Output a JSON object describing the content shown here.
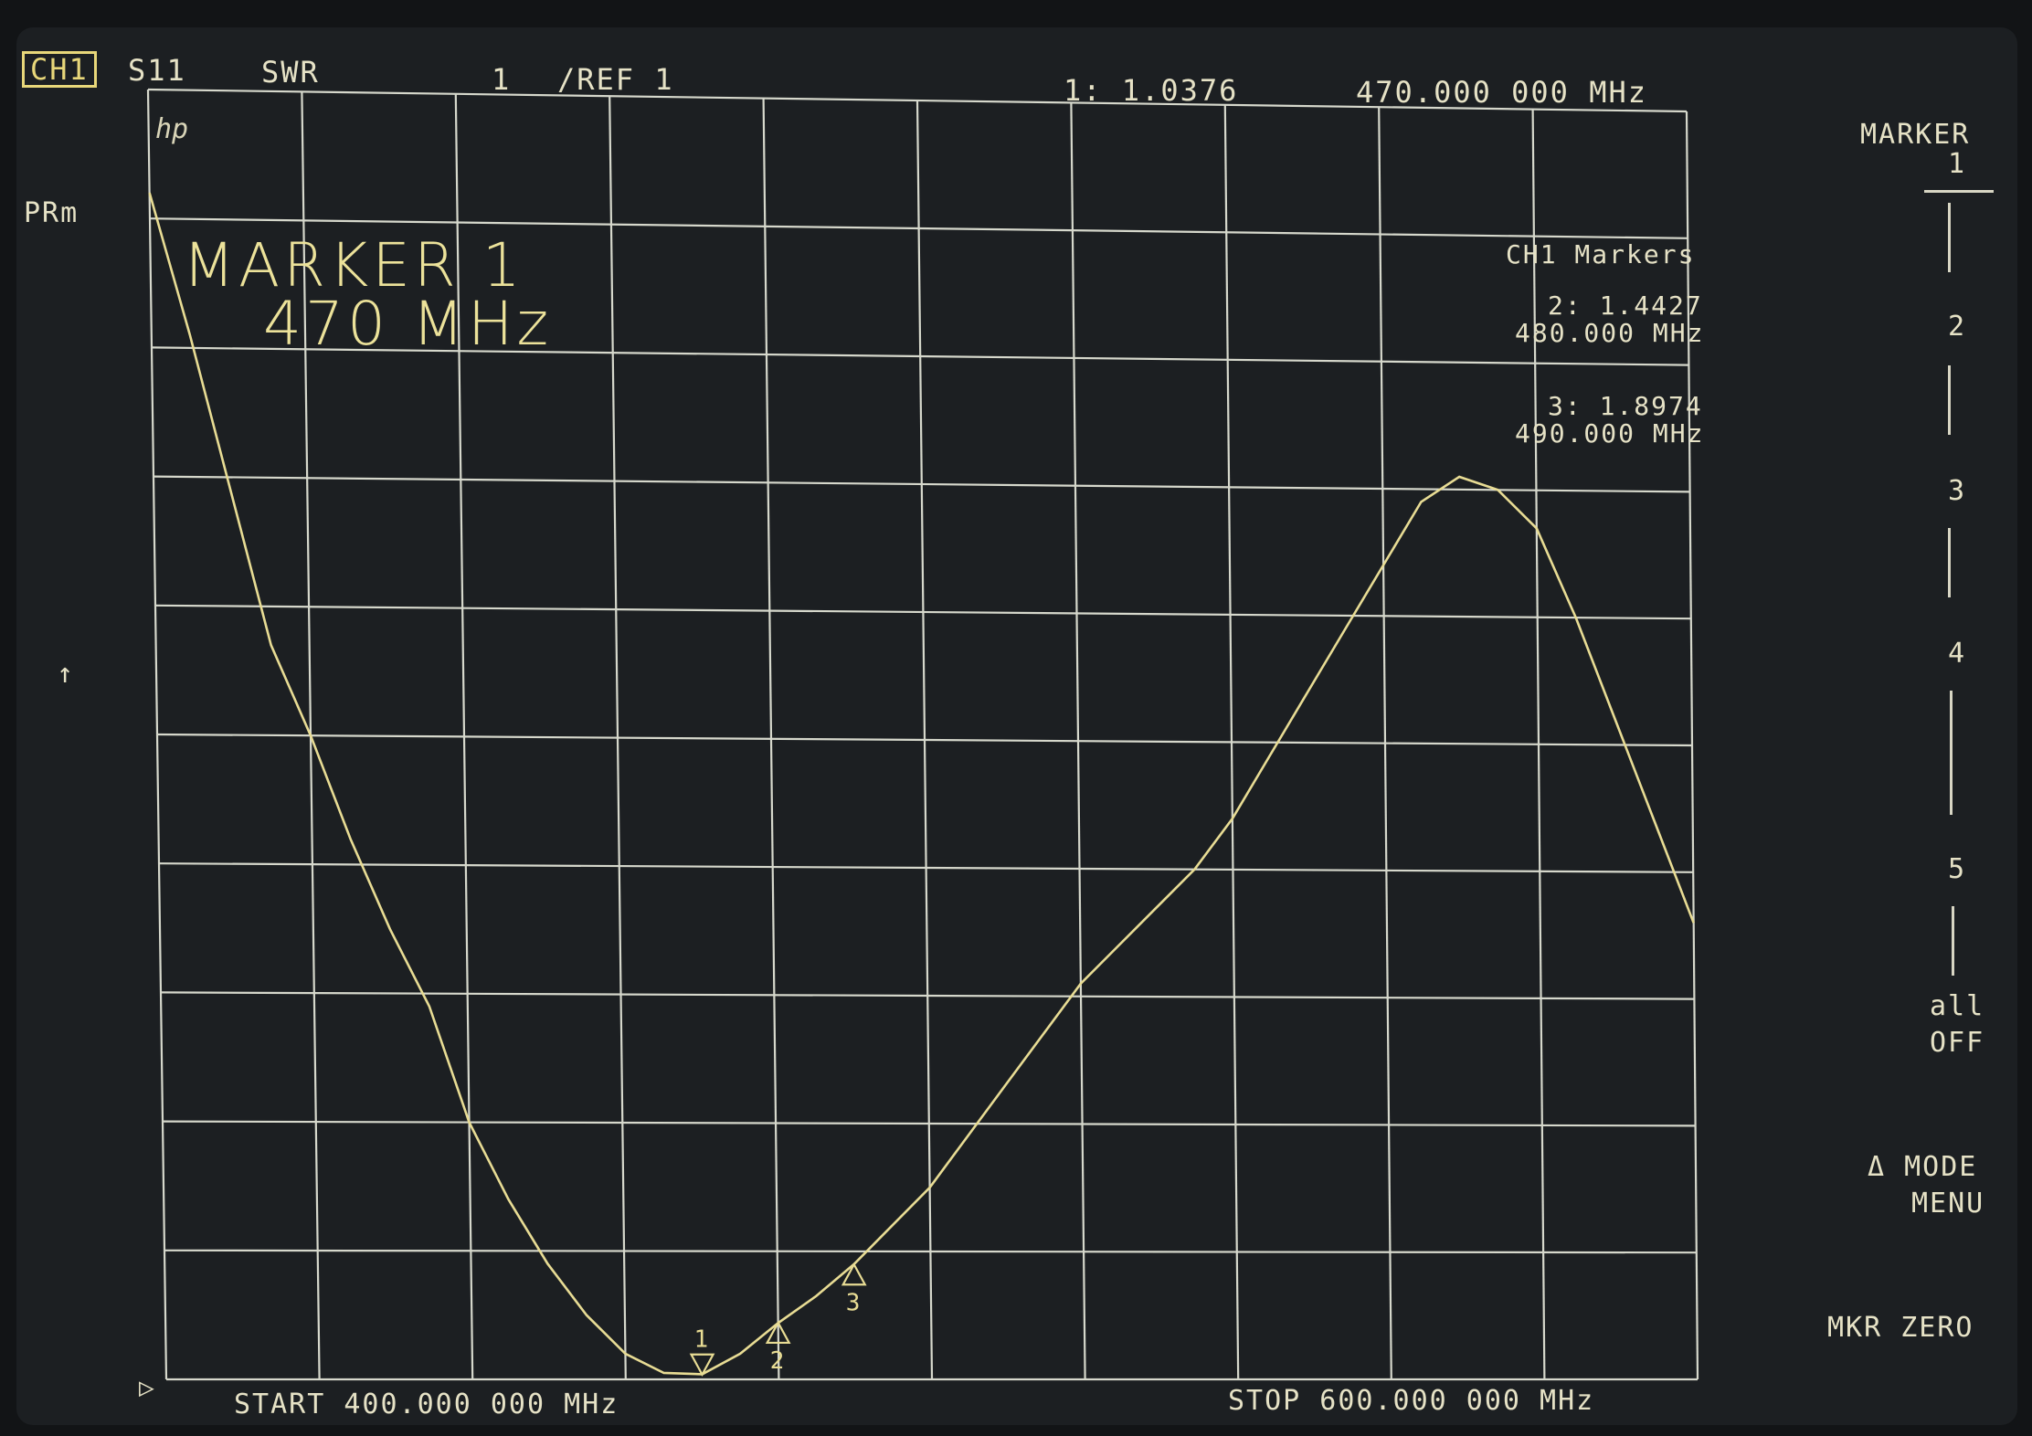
{
  "header": {
    "channel": "CH1",
    "parameter": "S11",
    "format": "SWR",
    "scale": "1",
    "scale_unit": "/REF 1",
    "marker_readout": "1: 1.0376",
    "marker_freq": "470.000 000 MHz"
  },
  "left": {
    "prm": "PRm",
    "arrow": "↑",
    "ref_marker": "▷"
  },
  "hp_logo": "hp",
  "active_marker": {
    "line1": "MARKER 1",
    "line2": "470 MHz"
  },
  "marker_list": {
    "title": "CH1 Markers",
    "items": [
      {
        "value": "2: 1.4427",
        "freq": "480.000 MHz"
      },
      {
        "value": "3: 1.8974",
        "freq": "490.000 MHz"
      }
    ]
  },
  "footer": {
    "start": "START 400.000 000 MHz",
    "stop": "STOP 600.000 000 MHz"
  },
  "softkeys": {
    "marker_title": "MARKER",
    "marker_1": "1",
    "marker_2": "2",
    "marker_3": "3",
    "marker_4": "4",
    "marker_5": "5",
    "all_off_1": "all",
    "all_off_2": "OFF",
    "mode_menu_1": "Δ MODE",
    "mode_menu_2": "MENU",
    "mkr_zero": "MKR ZERO"
  },
  "colors": {
    "trace": "#e8dc94",
    "grid": "#d6d8cc",
    "background": "#1c1f22"
  },
  "chart_data": {
    "type": "line",
    "x_unit": "MHz",
    "xlim": [
      400,
      600
    ],
    "ylim": [
      1,
      11
    ],
    "grid": true,
    "x_divisions": 10,
    "y_divisions": 10,
    "series": [
      {
        "x": [
          400,
          405,
          410,
          415,
          420,
          425,
          430,
          435,
          440,
          445,
          450,
          455,
          460,
          465,
          470,
          475,
          480,
          485,
          490,
          495,
          500,
          505,
          510,
          515,
          520,
          525,
          530,
          535,
          540,
          545,
          550,
          555,
          560,
          565,
          570,
          575,
          580,
          585,
          590,
          595,
          600
        ],
        "y": [
          10.2,
          9.1,
          7.9,
          6.7,
          6.0,
          5.2,
          4.5,
          3.9,
          3.0,
          2.4,
          1.9,
          1.5,
          1.2,
          1.05,
          1.04,
          1.2,
          1.44,
          1.65,
          1.9,
          2.2,
          2.5,
          2.9,
          3.3,
          3.7,
          4.1,
          4.4,
          4.7,
          5.0,
          5.4,
          5.9,
          6.4,
          6.9,
          7.4,
          7.9,
          8.1,
          8.0,
          7.7,
          7.0,
          6.2,
          5.4,
          4.6
        ]
      }
    ],
    "markers": [
      {
        "label": "1",
        "x": 470,
        "y": 1.0376,
        "style": "down"
      },
      {
        "label": "2",
        "x": 480,
        "y": 1.4427,
        "style": "up"
      },
      {
        "label": "3",
        "x": 490,
        "y": 1.8974,
        "style": "up"
      }
    ]
  }
}
